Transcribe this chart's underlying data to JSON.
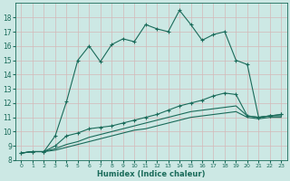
{
  "xlabel": "Humidex (Indice chaleur)",
  "bg_color": "#cce8e4",
  "grid_color": "#b0d8d0",
  "line_color": "#1a6b5a",
  "xlim": [
    -0.5,
    23.5
  ],
  "ylim": [
    8,
    19
  ],
  "xticks": [
    0,
    1,
    2,
    3,
    4,
    5,
    6,
    7,
    8,
    9,
    10,
    11,
    12,
    13,
    14,
    15,
    16,
    17,
    18,
    19,
    20,
    21,
    22,
    23
  ],
  "yticks": [
    8,
    9,
    10,
    11,
    12,
    13,
    14,
    15,
    16,
    17,
    18
  ],
  "line1_x": [
    0,
    1,
    2,
    3,
    4,
    5,
    6,
    7,
    8,
    9,
    10,
    11,
    12,
    13,
    14,
    15,
    16,
    17,
    18,
    19,
    20,
    21,
    22,
    23
  ],
  "line1_y": [
    8.5,
    8.6,
    8.6,
    9.7,
    12.1,
    15.0,
    16.0,
    14.9,
    16.1,
    16.5,
    16.3,
    17.5,
    17.2,
    17.0,
    18.5,
    17.5,
    16.4,
    16.8,
    17.0,
    15.0,
    14.7,
    11.0,
    11.1,
    11.2
  ],
  "line2_x": [
    0,
    1,
    2,
    3,
    4,
    5,
    6,
    7,
    8,
    9,
    10,
    11,
    12,
    13,
    14,
    15,
    16,
    17,
    18,
    19,
    20,
    21,
    22,
    23
  ],
  "line2_y": [
    8.5,
    8.6,
    8.6,
    9.0,
    9.7,
    9.9,
    10.2,
    10.3,
    10.4,
    10.6,
    10.8,
    11.0,
    11.2,
    11.5,
    11.8,
    12.0,
    12.2,
    12.5,
    12.7,
    12.6,
    11.1,
    11.0,
    11.1,
    11.2
  ],
  "line3_x": [
    0,
    1,
    2,
    3,
    4,
    5,
    6,
    7,
    8,
    9,
    10,
    11,
    12,
    13,
    14,
    15,
    16,
    17,
    18,
    19,
    20,
    21,
    22,
    23
  ],
  "line3_y": [
    8.5,
    8.6,
    8.6,
    8.8,
    9.1,
    9.3,
    9.6,
    9.8,
    10.0,
    10.2,
    10.4,
    10.6,
    10.8,
    11.0,
    11.2,
    11.4,
    11.5,
    11.6,
    11.7,
    11.8,
    11.1,
    11.0,
    11.1,
    11.1
  ],
  "line4_x": [
    0,
    1,
    2,
    3,
    4,
    5,
    6,
    7,
    8,
    9,
    10,
    11,
    12,
    13,
    14,
    15,
    16,
    17,
    18,
    19,
    20,
    21,
    22,
    23
  ],
  "line4_y": [
    8.5,
    8.6,
    8.6,
    8.7,
    8.9,
    9.1,
    9.3,
    9.5,
    9.7,
    9.9,
    10.1,
    10.2,
    10.4,
    10.6,
    10.8,
    11.0,
    11.1,
    11.2,
    11.3,
    11.4,
    11.0,
    10.9,
    11.0,
    11.0
  ]
}
